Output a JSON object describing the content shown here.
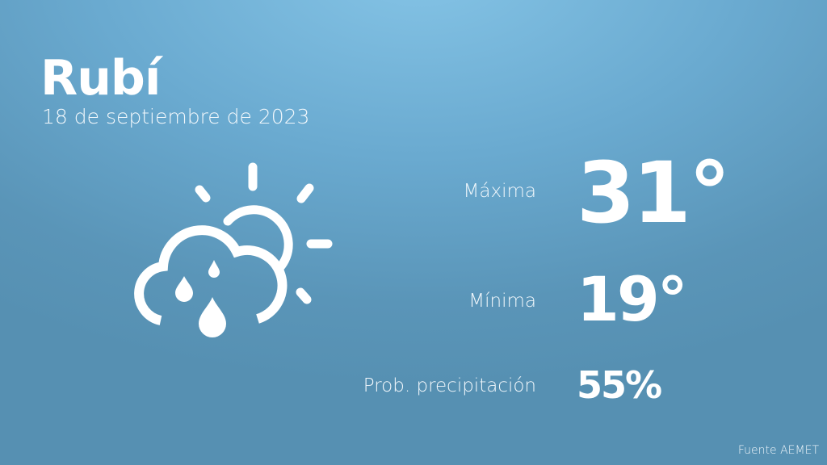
{
  "location": "Rubí",
  "date": "18 de septiembre de 2023",
  "weather_icon": "cloud-sun-rain-icon",
  "stats": {
    "max_label": "Máxima",
    "max_value": "31°",
    "min_label": "Mínima",
    "min_value": "19°",
    "precip_label": "Prob. precipitación",
    "precip_value": "55%"
  },
  "source": "Fuente AEMET",
  "colors": {
    "background_top": "#85c4e6",
    "background_bottom": "#5690b2",
    "text": "#ffffff"
  }
}
